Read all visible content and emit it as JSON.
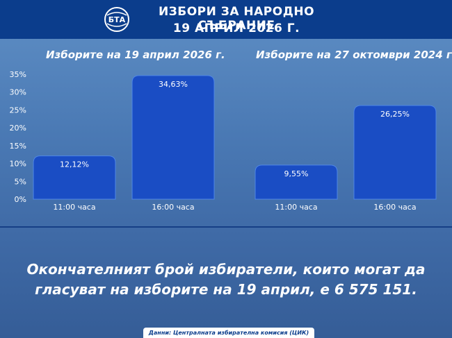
{
  "header": {
    "logo_text": "БТА",
    "title_line1": "ИЗБОРИ ЗА НАРОДНО СЪБРАНИЕ",
    "title_line2": "19 АПРИЛ 2026 Г."
  },
  "colors": {
    "header_bg": "#0b3d8c",
    "bar_fill": "#1a4dc4",
    "bar_stroke": "#4f86e6",
    "divider": "#163f86"
  },
  "chart_data": [
    {
      "type": "bar",
      "title": "Изборите на 19 април 2026 г.",
      "categories": [
        "11:00 часа",
        "16:00 часа"
      ],
      "values": [
        12.12,
        34.63
      ],
      "value_labels": [
        "12,12%",
        "34,63%"
      ],
      "ylim": [
        0,
        35
      ],
      "yticks": [
        "0%",
        "5%",
        "10%",
        "15%",
        "20%",
        "25%",
        "30%",
        "35%"
      ],
      "grid": false
    },
    {
      "type": "bar",
      "title": "Изборите на 27 октомври 2024 г.",
      "categories": [
        "11:00 часа",
        "16:00 часа"
      ],
      "values": [
        9.55,
        26.25
      ],
      "value_labels": [
        "9,55%",
        "26,25%"
      ],
      "ylim": [
        0,
        35
      ],
      "grid": false
    }
  ],
  "message": {
    "line1": "Окончателният брой избиратели, които могат да",
    "line2": "гласуват на изборите на 19 април, е 6 575 151."
  },
  "footer": {
    "source": "Данни: Централната избирателна комисия (ЦИК)"
  }
}
